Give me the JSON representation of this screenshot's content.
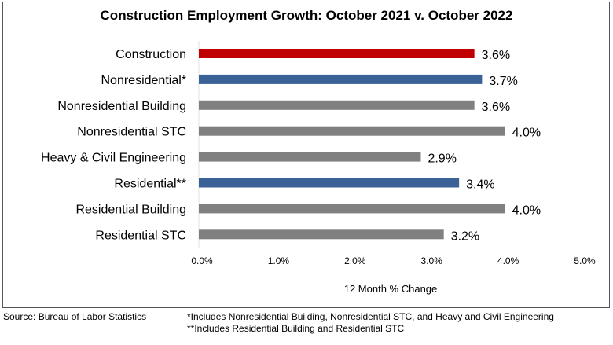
{
  "chart_data": {
    "type": "bar",
    "orientation": "horizontal",
    "title": "Construction Employment Growth: October 2021 v. October 2022",
    "xlabel": "12 Month % Change",
    "ylabel": "",
    "xlim": [
      0,
      5
    ],
    "xticks": [
      "0.0%",
      "1.0%",
      "2.0%",
      "3.0%",
      "4.0%",
      "5.0%"
    ],
    "categories": [
      "Construction",
      "Nonresidential*",
      "Nonresidential Building",
      "Nonresidential STC",
      "Heavy & Civil Engineering",
      "Residential**",
      "Residential Building",
      "Residential STC"
    ],
    "values": [
      3.6,
      3.7,
      3.6,
      4.0,
      2.9,
      3.4,
      4.0,
      3.2
    ],
    "data_labels": [
      "3.6%",
      "3.7%",
      "3.6%",
      "4.0%",
      "2.9%",
      "3.4%",
      "4.0%",
      "3.2%"
    ],
    "colors": [
      "#c00000",
      "#3a6296",
      "#808080",
      "#808080",
      "#808080",
      "#3a6296",
      "#808080",
      "#808080"
    ],
    "grid": false
  },
  "footer": {
    "source": "Source:  Bureau of Labor Statistics",
    "note1": "*Includes Nonresidential Building, Nonresidential STC, and Heavy and Civil Engineering",
    "note2": "**Includes Residential Building and Residential STC"
  }
}
